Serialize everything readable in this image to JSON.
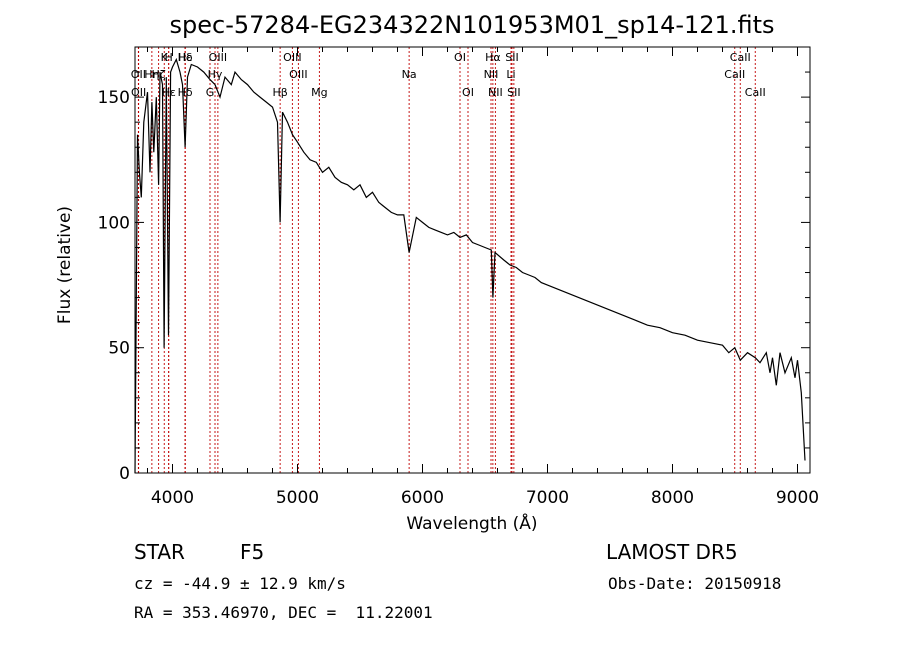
{
  "chart_data": {
    "type": "line",
    "title": "spec-57284-EG234322N101953M01_sp14-121.fits",
    "xlabel": "Wavelength (Å)",
    "ylabel": "Flux (relative)",
    "xlim": [
      3700,
      9100
    ],
    "ylim": [
      0,
      170
    ],
    "xticks": [
      4000,
      5000,
      6000,
      7000,
      8000,
      9000
    ],
    "yticks": [
      0,
      50,
      100,
      150
    ],
    "grid": false,
    "series": [
      {
        "x": [
          3700,
          3720,
          3735,
          3750,
          3770,
          3800,
          3820,
          3835,
          3850,
          3870,
          3889,
          3900,
          3920,
          3933,
          3950,
          3968,
          3985,
          4000,
          4030,
          4060,
          4080,
          4101,
          4120,
          4150,
          4200,
          4250,
          4300,
          4340,
          4380,
          4420,
          4470,
          4500,
          4550,
          4600,
          4650,
          4700,
          4750,
          4800,
          4840,
          4861,
          4880,
          4920,
          4960,
          5000,
          5050,
          5100,
          5150,
          5200,
          5250,
          5300,
          5350,
          5400,
          5450,
          5500,
          5550,
          5600,
          5650,
          5700,
          5750,
          5800,
          5850,
          5893,
          5950,
          6000,
          6050,
          6100,
          6150,
          6200,
          6250,
          6300,
          6350,
          6400,
          6450,
          6500,
          6550,
          6563,
          6580,
          6650,
          6700,
          6750,
          6800,
          6850,
          6900,
          6950,
          7000,
          7100,
          7200,
          7300,
          7400,
          7500,
          7600,
          7700,
          7800,
          7900,
          8000,
          8100,
          8200,
          8300,
          8400,
          8450,
          8498,
          8542,
          8600,
          8662,
          8700,
          8750,
          8780,
          8800,
          8830,
          8860,
          8900,
          8950,
          8980,
          9000,
          9030,
          9060
        ],
        "y": [
          0,
          135,
          120,
          110,
          140,
          152,
          120,
          148,
          128,
          150,
          115,
          160,
          155,
          50,
          158,
          55,
          160,
          162,
          165,
          160,
          155,
          130,
          158,
          163,
          162,
          160,
          157,
          155,
          150,
          158,
          155,
          160,
          157,
          155,
          152,
          150,
          148,
          146,
          140,
          100,
          144,
          140,
          135,
          132,
          128,
          125,
          124,
          120,
          122,
          118,
          116,
          115,
          113,
          115,
          110,
          112,
          108,
          106,
          104,
          103,
          103,
          88,
          102,
          100,
          98,
          97,
          96,
          95,
          96,
          94,
          95,
          92,
          91,
          90,
          89,
          70,
          88,
          85,
          83,
          82,
          80,
          79,
          78,
          76,
          75,
          73,
          71,
          69,
          67,
          65,
          63,
          61,
          59,
          58,
          56,
          55,
          53,
          52,
          51,
          48,
          50,
          45,
          48,
          46,
          44,
          48,
          40,
          46,
          35,
          48,
          40,
          46,
          38,
          45,
          32,
          5
        ]
      }
    ],
    "line_markers": [
      {
        "label": "Hδ",
        "x": 4101,
        "row": 1
      },
      {
        "label": "K",
        "x": 3934,
        "row": 1
      },
      {
        "label": "H",
        "x": 3969,
        "row": 1
      },
      {
        "label": "Hε",
        "x": 4102,
        "row": 1
      },
      {
        "label": "OII",
        "x": 3727,
        "row": 2
      },
      {
        "label": "Hη",
        "x": 3835,
        "row": 2
      },
      {
        "label": "Hζ",
        "x": 3889,
        "row": 2
      },
      {
        "label": "G",
        "x": 4300,
        "row": 3
      },
      {
        "label": "OII",
        "x": 3729,
        "row": 3
      },
      {
        "label": "Hε",
        "x": 3970,
        "row": 3
      },
      {
        "label": "Hδ",
        "x": 4101,
        "row": 3
      },
      {
        "label": "OIII",
        "x": 4363,
        "row": 1
      },
      {
        "label": "Hγ",
        "x": 4340,
        "row": 2
      },
      {
        "label": "Hβ",
        "x": 4861,
        "row": 3
      },
      {
        "label": "OIII",
        "x": 4959,
        "row": 1
      },
      {
        "label": "OIII",
        "x": 5007,
        "row": 2
      },
      {
        "label": "Mg",
        "x": 5175,
        "row": 3
      },
      {
        "label": "Na",
        "x": 5893,
        "row": 2
      },
      {
        "label": "OI",
        "x": 6300,
        "row": 1
      },
      {
        "label": "OI",
        "x": 6364,
        "row": 3
      },
      {
        "label": "Hα",
        "x": 6563,
        "row": 1
      },
      {
        "label": "NII",
        "x": 6548,
        "row": 2
      },
      {
        "label": "NII",
        "x": 6583,
        "row": 3
      },
      {
        "label": "SII",
        "x": 6716,
        "row": 1
      },
      {
        "label": "Li",
        "x": 6708,
        "row": 2
      },
      {
        "label": "SII",
        "x": 6731,
        "row": 3
      },
      {
        "label": "CaII",
        "x": 8542,
        "row": 1
      },
      {
        "label": "CaII",
        "x": 8498,
        "row": 2
      },
      {
        "label": "CaII",
        "x": 8662,
        "row": 3
      }
    ]
  },
  "info": {
    "object_class": "STAR",
    "subclass": "F5",
    "survey": "LAMOST DR5",
    "cz": "cz = -44.9 ± 12.9 km/s",
    "obs_date": "Obs-Date: 20150918",
    "coords": "RA = 353.46970, DEC =  11.22001"
  }
}
